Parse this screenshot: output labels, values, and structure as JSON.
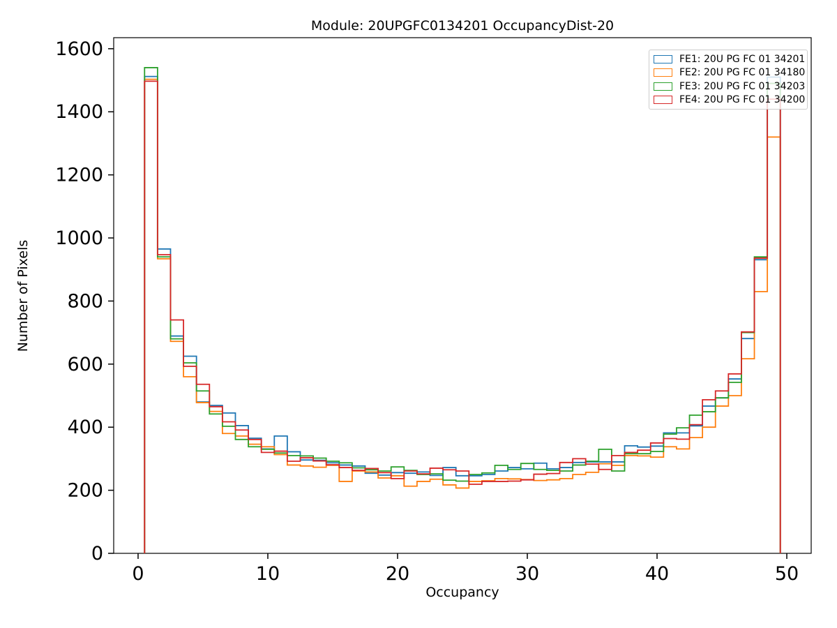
{
  "title": "Module: 20UPGFC0134201 OccupancyDist-20",
  "axes": {
    "xlabel": "Occupancy",
    "ylabel": "Number of Pixels",
    "x_ticks": [
      0,
      10,
      20,
      30,
      40,
      50
    ],
    "y_ticks": [
      0,
      200,
      400,
      600,
      800,
      1000,
      1200,
      1400,
      1600
    ],
    "xlim": [
      -1.88,
      51.88
    ],
    "ylim": [
      0,
      1635
    ]
  },
  "legend": {
    "entries": [
      {
        "label": "FE1: 20U PG FC 01 34201",
        "color": "#1f77b4"
      },
      {
        "label": "FE2: 20U PG FC 01 34180",
        "color": "#ff7f0e"
      },
      {
        "label": "FE3: 20U PG FC 01 34203",
        "color": "#2ca02c"
      },
      {
        "label": "FE4: 20U PG FC 01 34200",
        "color": "#d62728"
      }
    ]
  },
  "chart_data": {
    "type": "step-histogram",
    "title": "Module: 20UPGFC0134201 OccupancyDist-20",
    "xlabel": "Occupancy",
    "ylabel": "Number of Pixels",
    "bin_start": 0.5,
    "bin_width": 1,
    "bin_centers": [
      1,
      2,
      3,
      4,
      5,
      6,
      7,
      8,
      9,
      10,
      11,
      12,
      13,
      14,
      15,
      16,
      17,
      18,
      19,
      20,
      21,
      22,
      23,
      24,
      25,
      26,
      27,
      28,
      29,
      30,
      31,
      32,
      33,
      34,
      35,
      36,
      37,
      38,
      39,
      40,
      41,
      42,
      43,
      44,
      45,
      46,
      47,
      48,
      49
    ],
    "xlim": [
      -1.88,
      51.88
    ],
    "ylim": [
      0,
      1635
    ],
    "grid": false,
    "legend_position": "upper right",
    "series": [
      {
        "name": "FE1: 20U PG FC 01 34201",
        "color": "#1f77b4",
        "values": [
          1512,
          965,
          689,
          625,
          480,
          469,
          445,
          405,
          365,
          331,
          372,
          322,
          296,
          295,
          287,
          280,
          277,
          254,
          248,
          256,
          254,
          258,
          247,
          272,
          246,
          246,
          250,
          261,
          272,
          268,
          286,
          268,
          272,
          288,
          290,
          290,
          290,
          341,
          337,
          340,
          382,
          382,
          404,
          467,
          493,
          553,
          681,
          931,
          1510
        ]
      },
      {
        "name": "FE2: 20U PG FC 01 34180",
        "color": "#ff7f0e",
        "values": [
          1503,
          934,
          672,
          560,
          478,
          450,
          380,
          372,
          346,
          338,
          313,
          280,
          277,
          273,
          279,
          228,
          261,
          258,
          239,
          246,
          213,
          228,
          235,
          217,
          207,
          228,
          230,
          237,
          236,
          234,
          231,
          233,
          237,
          250,
          257,
          284,
          279,
          310,
          309,
          305,
          338,
          331,
          367,
          400,
          467,
          500,
          617,
          830,
          1320
        ]
      },
      {
        "name": "FE3: 20U PG FC 01 34203",
        "color": "#2ca02c",
        "values": [
          1540,
          940,
          680,
          604,
          515,
          442,
          403,
          361,
          338,
          330,
          318,
          310,
          309,
          302,
          292,
          287,
          271,
          265,
          261,
          274,
          263,
          250,
          252,
          232,
          229,
          250,
          255,
          279,
          266,
          285,
          266,
          263,
          261,
          280,
          292,
          330,
          261,
          316,
          316,
          323,
          378,
          398,
          438,
          449,
          493,
          542,
          700,
          940,
          1490
        ]
      },
      {
        "name": "FE4: 20U PG FC 01 34200",
        "color": "#d62728",
        "values": [
          1497,
          947,
          740,
          593,
          536,
          465,
          417,
          391,
          361,
          320,
          324,
          292,
          303,
          293,
          281,
          272,
          263,
          269,
          256,
          237,
          261,
          252,
          270,
          265,
          261,
          219,
          228,
          228,
          229,
          233,
          251,
          253,
          288,
          300,
          283,
          266,
          310,
          320,
          327,
          350,
          364,
          362,
          408,
          487,
          515,
          569,
          702,
          936,
          1440
        ]
      }
    ]
  },
  "style": {
    "spine_color": "#000000",
    "tick_font_px": 27,
    "line_width": 1.8
  }
}
